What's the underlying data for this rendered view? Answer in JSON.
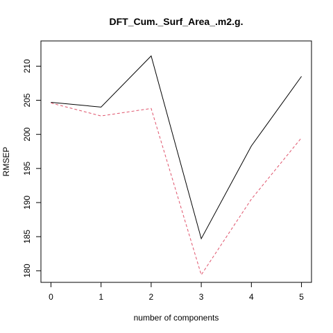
{
  "chart_data": {
    "type": "line",
    "title": "DFT_Cum._Surf_Area_.m2.g.",
    "xlabel": "number of components",
    "ylabel": "RMSEP",
    "x": [
      0,
      1,
      2,
      3,
      4,
      5
    ],
    "xticks": [
      "0",
      "1",
      "2",
      "3",
      "4",
      "5"
    ],
    "yticks": [
      "180",
      "185",
      "190",
      "195",
      "200",
      "205",
      "210"
    ],
    "ytick_values": [
      180,
      185,
      190,
      195,
      200,
      205,
      210
    ],
    "xlim": [
      -0.2,
      5.2
    ],
    "ylim": [
      178.3,
      213.7
    ],
    "series": [
      {
        "values": [
          204.7,
          204.0,
          211.5,
          184.7,
          198.3,
          208.5
        ],
        "color": "#000000",
        "style": "solid"
      },
      {
        "values": [
          204.6,
          202.7,
          203.8,
          179.4,
          190.5,
          199.5
        ],
        "color": "#DF536B",
        "style": "dashed"
      }
    ]
  }
}
